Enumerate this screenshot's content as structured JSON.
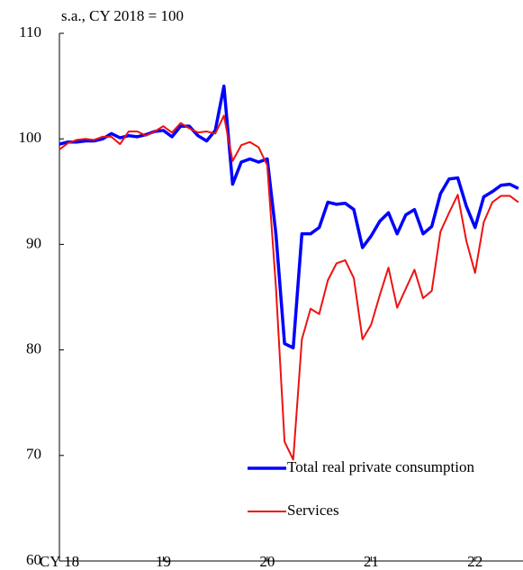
{
  "chart_data": {
    "type": "line",
    "y_axis_label": "s.a., CY 2018 = 100",
    "categories": [
      "CY 18",
      null,
      null,
      null,
      null,
      null,
      null,
      null,
      null,
      null,
      null,
      null,
      "19",
      null,
      null,
      null,
      null,
      null,
      null,
      null,
      null,
      null,
      null,
      null,
      "20",
      null,
      null,
      null,
      null,
      null,
      null,
      null,
      null,
      null,
      null,
      null,
      "21",
      null,
      null,
      null,
      null,
      null,
      null,
      null,
      null,
      null,
      null,
      null,
      "22",
      null,
      null,
      null,
      null,
      null
    ],
    "series": [
      {
        "name": "Total real private consumption",
        "color": "#0000ff",
        "values": [
          99.5,
          99.7,
          99.7,
          99.8,
          99.8,
          100.0,
          100.5,
          100.1,
          100.3,
          100.2,
          100.4,
          100.7,
          100.8,
          100.2,
          101.2,
          101.2,
          100.3,
          99.8,
          100.8,
          105.0,
          95.7,
          97.8,
          98.1,
          97.8,
          98.1,
          91.0,
          80.6,
          80.2,
          91.0,
          91.0,
          91.6,
          94.0,
          93.8,
          93.9,
          93.3,
          89.7,
          90.8,
          92.2,
          93.0,
          91.0,
          92.8,
          93.3,
          91.0,
          91.7,
          94.8,
          96.2,
          96.3,
          93.6,
          91.6,
          94.5,
          95.0,
          95.6,
          95.7,
          95.3
        ]
      },
      {
        "name": "Services",
        "color": "#ee1111",
        "values": [
          99.0,
          99.6,
          99.9,
          100.0,
          99.9,
          100.2,
          100.2,
          99.5,
          100.7,
          100.7,
          100.3,
          100.7,
          101.2,
          100.6,
          101.5,
          101.0,
          100.6,
          100.7,
          100.5,
          102.2,
          97.9,
          99.4,
          99.7,
          99.2,
          97.5,
          86.0,
          71.3,
          69.6,
          81.0,
          83.9,
          83.4,
          86.6,
          88.2,
          88.5,
          86.8,
          81.0,
          82.4,
          85.2,
          87.8,
          84.0,
          85.8,
          87.6,
          84.9,
          85.6,
          91.2,
          93.0,
          94.7,
          90.3,
          87.3,
          92.1,
          94.0,
          94.6,
          94.6,
          94.0
        ]
      }
    ],
    "ylim": [
      60,
      110
    ],
    "yticks": [
      60,
      70,
      80,
      90,
      100,
      110
    ]
  }
}
